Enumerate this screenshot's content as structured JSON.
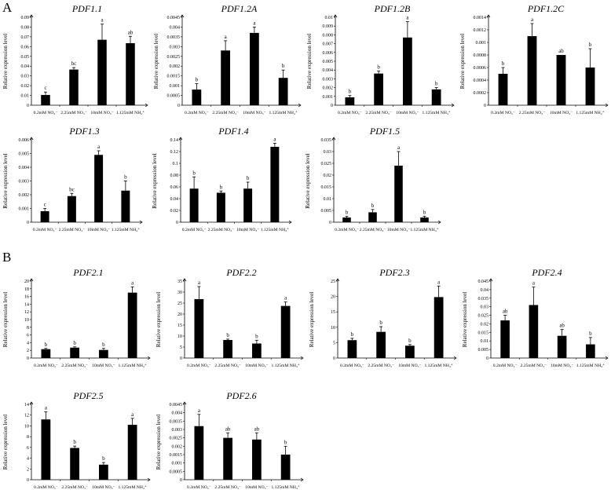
{
  "section_labels": [
    "A",
    "B"
  ],
  "chart_data": [
    {
      "type": "bar",
      "title": "PDF1.1",
      "ylabel": "Relative expression level",
      "categories": [
        "0.2mM NO₃⁻",
        "2.25mM NO₃⁻",
        "10mM NO₃⁻",
        "1.125mM NH₄⁺"
      ],
      "values": [
        0.0105,
        0.0365,
        0.067,
        0.0635
      ],
      "errors": [
        0.003,
        0.002,
        0.016,
        0.007
      ],
      "letters": [
        "c",
        "bc",
        "a",
        "ab"
      ],
      "ylim": [
        0,
        0.09
      ],
      "yticks": [
        "0",
        "0.01",
        "0.02",
        "0.03",
        "0.04",
        "0.05",
        "0.06",
        "0.07",
        "0.08",
        "0.09"
      ]
    },
    {
      "type": "bar",
      "title": "PDF1.2A",
      "ylabel": "Relative expression level",
      "categories": [
        "0.2mM NO₃⁻",
        "2.25mM NO₃⁻",
        "10mM NO₃⁻",
        "1.125mM NH₄⁺"
      ],
      "values": [
        0.0008,
        0.0028,
        0.0037,
        0.0014
      ],
      "errors": [
        0.0003,
        0.0005,
        0.0003,
        0.0004
      ],
      "letters": [
        "b",
        "a",
        "a",
        "b"
      ],
      "ylim": [
        0,
        0.0045
      ],
      "yticks": [
        "0",
        "0.0005",
        "0.001",
        "0.0015",
        "0.002",
        "0.0025",
        "0.003",
        "0.0035",
        "0.004",
        "0.0045"
      ]
    },
    {
      "type": "bar",
      "title": "PDF1.2B",
      "ylabel": "Relative expression level",
      "categories": [
        "0.2mM NO₃⁻",
        "2.25mM NO₃⁻",
        "10mM NO₃⁻",
        "1.125mM NH₄⁺"
      ],
      "values": [
        0.0009,
        0.0036,
        0.0077,
        0.0018
      ],
      "errors": [
        0.0002,
        0.0003,
        0.0018,
        0.0002
      ],
      "letters": [
        "b",
        "b",
        "a",
        "b"
      ],
      "ylim": [
        0,
        0.01
      ],
      "yticks": [
        "0",
        "0.001",
        "0.002",
        "0.003",
        "0.004",
        "0.005",
        "0.006",
        "0.007",
        "0.008",
        "0.009",
        "0.01"
      ]
    },
    {
      "type": "bar",
      "title": "PDF1.2C",
      "ylabel": "Relative expression level",
      "categories": [
        "0.2mM NO₃⁻",
        "2.25mM NO₃⁻",
        "10mM NO₃⁻",
        "1.125mM NH₄⁺"
      ],
      "values": [
        0.0005,
        0.0011,
        0.0008,
        0.0006
      ],
      "errors": [
        0.0001,
        0.0002,
        0.0,
        0.0003
      ],
      "letters": [
        "b",
        "a",
        "ab",
        "b"
      ],
      "ylim": [
        0,
        0.0014
      ],
      "yticks": [
        "0",
        "0.0002",
        "0.0004",
        "0.0006",
        "0.0008",
        "0.001",
        "0.0012",
        "0.0014"
      ]
    },
    {
      "type": "bar",
      "title": "PDF1.3",
      "ylabel": "Relative expression level",
      "categories": [
        "0.2mM NO₃⁻",
        "2.25mM NO₃⁻",
        "10mM NO₃⁻",
        "1.125mM NH₄⁺"
      ],
      "values": [
        0.0008,
        0.0019,
        0.0049,
        0.0023
      ],
      "errors": [
        0.0002,
        0.0002,
        0.0003,
        0.0007
      ],
      "letters": [
        "c",
        "bc",
        "a",
        "b"
      ],
      "ylim": [
        0,
        0.006
      ],
      "yticks": [
        "0",
        "0.001",
        "0.002",
        "0.003",
        "0.004",
        "0.005",
        "0.006"
      ]
    },
    {
      "type": "bar",
      "title": "PDF1.4",
      "ylabel": "Relative expression level",
      "categories": [
        "0.2mM NO₃⁻",
        "2.25mM NO₃⁻",
        "10mM NO₃⁻",
        "1.125mM NH₄⁺"
      ],
      "values": [
        0.057,
        0.05,
        0.057,
        0.128
      ],
      "errors": [
        0.02,
        0.003,
        0.011,
        0.006
      ],
      "letters": [
        "b",
        "b",
        "b",
        "a"
      ],
      "ylim": [
        0,
        0.14
      ],
      "yticks": [
        "0",
        "0.02",
        "0.04",
        "0.06",
        "0.08",
        "0.1",
        "0.12",
        "0.14"
      ]
    },
    {
      "type": "bar",
      "title": "PDF1.5",
      "ylabel": "Relative expression level",
      "categories": [
        "0.2mM NO₃⁻",
        "2.25mM NO₃⁻",
        "10mM NO₃⁻",
        "1.125mM NH₄⁺"
      ],
      "values": [
        0.002,
        0.0042,
        0.024,
        0.002
      ],
      "errors": [
        0.0005,
        0.0012,
        0.006,
        0.0005
      ],
      "letters": [
        "b",
        "b",
        "a",
        "b"
      ],
      "ylim": [
        0,
        0.035
      ],
      "yticks": [
        "0",
        "0.005",
        "0.01",
        "0.015",
        "0.02",
        "0.025",
        "0.03",
        "0.035"
      ]
    },
    {
      "type": "bar",
      "title": "PDF2.1",
      "ylabel": "Relative expression level",
      "categories": [
        "0.2mM NO₃⁻",
        "2.25mM NO₃⁻",
        "10mM NO₃⁻",
        "1.125mM NH₄⁺"
      ],
      "values": [
        2.3,
        2.7,
        2.1,
        17
      ],
      "errors": [
        0.2,
        0.2,
        0.4,
        1.5
      ],
      "letters": [
        "b",
        "b",
        "b",
        "a"
      ],
      "ylim": [
        0,
        20
      ],
      "yticks": [
        "0",
        "2",
        "4",
        "6",
        "8",
        "10",
        "12",
        "14",
        "16",
        "18",
        "20"
      ]
    },
    {
      "type": "bar",
      "title": "PDF2.2",
      "ylabel": "Relative expression level",
      "categories": [
        "0.2mM NO₃⁻",
        "2.25mM NO₃⁻",
        "10mM NO₃⁻",
        "1.125mM NH₄⁺"
      ],
      "values": [
        26.8,
        8.2,
        6.6,
        23.7
      ],
      "errors": [
        5.7,
        0.4,
        1.5,
        1.8
      ],
      "letters": [
        "a",
        "b",
        "b",
        "a"
      ],
      "ylim": [
        0,
        35
      ],
      "yticks": [
        "0",
        "5",
        "10",
        "15",
        "20",
        "25",
        "30",
        "35"
      ]
    },
    {
      "type": "bar",
      "title": "PDF2.3",
      "ylabel": "Relative expression level",
      "categories": [
        "0.2mM NO₃⁻",
        "2.25mM NO₃⁻",
        "10mM NO₃⁻",
        "1.125mM NH₄⁺"
      ],
      "values": [
        5.8,
        8.5,
        4.0,
        19.8
      ],
      "errors": [
        0.6,
        1.7,
        0.4,
        3.6
      ],
      "letters": [
        "b",
        "b",
        "b",
        "a"
      ],
      "ylim": [
        0,
        25
      ],
      "yticks": [
        "0",
        "5",
        "10",
        "15",
        "20",
        "25"
      ]
    },
    {
      "type": "bar",
      "title": "PDF2.4",
      "ylabel": "Relative expression level",
      "categories": [
        "0.2mM NO₃⁻",
        "2.25mM NO₃⁻",
        "10mM NO₃⁻",
        "1.125mM NH₄⁺"
      ],
      "values": [
        0.022,
        0.031,
        0.013,
        0.008
      ],
      "errors": [
        0.003,
        0.0105,
        0.0037,
        0.004
      ],
      "letters": [
        "ab",
        "a",
        "ab",
        "b"
      ],
      "ylim": [
        0,
        0.045
      ],
      "yticks": [
        "0",
        "0.005",
        "0.01",
        "0.015",
        "0.02",
        "0.025",
        "0.03",
        "0.035",
        "0.04",
        "0.045"
      ]
    },
    {
      "type": "bar",
      "title": "PDF2.5",
      "ylabel": "Relative expression level",
      "categories": [
        "0.2mM NO₃⁻",
        "2.25mM NO₃⁻",
        "10mM NO₃⁻",
        "1.125mM NH₄⁺"
      ],
      "values": [
        11.2,
        5.9,
        2.8,
        10.2
      ],
      "errors": [
        1.4,
        0.35,
        0.4,
        1.2
      ],
      "letters": [
        "a",
        "b",
        "b",
        "a"
      ],
      "ylim": [
        0,
        14
      ],
      "yticks": [
        "0",
        "2",
        "4",
        "6",
        "8",
        "10",
        "12",
        "14"
      ]
    },
    {
      "type": "bar",
      "title": "PDF2.6",
      "ylabel": "Relative expression level",
      "categories": [
        "0.2mM NO₃⁻",
        "2.25mM NO₃⁻",
        "10mM NO₃⁻",
        "1.125mM NH₄⁺"
      ],
      "values": [
        0.0032,
        0.0025,
        0.0024,
        0.0015
      ],
      "errors": [
        0.0007,
        0.0003,
        0.0004,
        0.0005
      ],
      "letters": [
        "a",
        "ab",
        "ab",
        "b"
      ],
      "ylim": [
        0,
        0.0045
      ],
      "yticks": [
        "0",
        "0.0005",
        "0.001",
        "0.0015",
        "0.002",
        "0.0025",
        "0.003",
        "0.0035",
        "0.004",
        "0.0045"
      ]
    }
  ]
}
